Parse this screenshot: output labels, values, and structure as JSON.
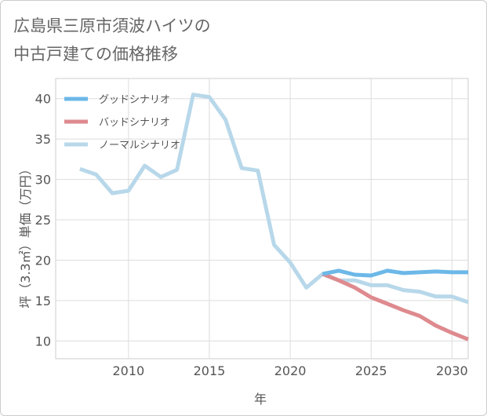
{
  "chart_data": {
    "type": "line",
    "title_line1": "広島県三原市須波ハイツの",
    "title_line2": "中古戸建ての価格推移",
    "xlabel": "年",
    "ylabel": "坪（3.3㎡）単価（万円）",
    "xlim": [
      2005.5,
      2031
    ],
    "ylim": [
      7.8,
      42.5
    ],
    "x_ticks": [
      2010,
      2015,
      2020,
      2025,
      2030
    ],
    "y_ticks": [
      10,
      15,
      20,
      25,
      30,
      35,
      40
    ],
    "series": [
      {
        "name": "グッドシナリオ",
        "color": "#6cb8e8",
        "x": [
          2022,
          2023,
          2024,
          2025,
          2026,
          2027,
          2028,
          2029,
          2030,
          2031
        ],
        "values": [
          18.3,
          18.7,
          18.2,
          18.1,
          18.7,
          18.4,
          18.5,
          18.6,
          18.5,
          18.5
        ]
      },
      {
        "name": "バッドシナリオ",
        "color": "#de8a8e",
        "x": [
          2022,
          2023,
          2024,
          2025,
          2026,
          2027,
          2028,
          2029,
          2030,
          2031
        ],
        "values": [
          18.3,
          17.5,
          16.6,
          15.4,
          14.6,
          13.8,
          13.1,
          11.9,
          11.0,
          10.2
        ]
      },
      {
        "name": "ノーマルシナリオ",
        "color": "#b8d8ea",
        "x": [
          2007,
          2008,
          2009,
          2010,
          2011,
          2012,
          2013,
          2014,
          2015,
          2016,
          2017,
          2018,
          2019,
          2020,
          2021,
          2022,
          2023,
          2024,
          2025,
          2026,
          2027,
          2028,
          2029,
          2030,
          2031
        ],
        "values": [
          31.3,
          30.6,
          28.3,
          28.6,
          31.7,
          30.3,
          31.2,
          40.5,
          40.2,
          37.4,
          31.4,
          31.1,
          21.9,
          19.7,
          16.6,
          18.3,
          17.5,
          17.5,
          16.9,
          16.9,
          16.3,
          16.1,
          15.5,
          15.5,
          14.8
        ]
      }
    ],
    "legend_position": "top-left",
    "grid": true
  }
}
